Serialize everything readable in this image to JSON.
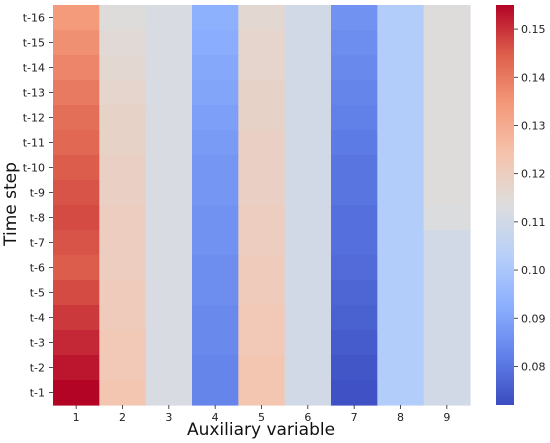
{
  "chart_data": {
    "type": "heatmap",
    "xlabel": "Auxiliary variable",
    "ylabel": "Time step",
    "x_categories": [
      "1",
      "2",
      "3",
      "4",
      "5",
      "6",
      "7",
      "8",
      "9"
    ],
    "y_categories": [
      "t-16",
      "t-15",
      "t-14",
      "t-13",
      "t-12",
      "t-11",
      "t-10",
      "t-9",
      "t-8",
      "t-7",
      "t-6",
      "t-5",
      "t-4",
      "t-3",
      "t-2",
      "t-1"
    ],
    "colormap": "coolwarm",
    "vmin": 0.072,
    "vmax": 0.155,
    "colorbar_ticks": [
      "0.08",
      "0.09",
      "0.10",
      "0.11",
      "0.12",
      "0.13",
      "0.14",
      "0.15"
    ],
    "values": [
      [
        0.134,
        0.114,
        0.112,
        0.093,
        0.116,
        0.11,
        0.086,
        0.102,
        0.114
      ],
      [
        0.136,
        0.115,
        0.112,
        0.092,
        0.117,
        0.11,
        0.085,
        0.102,
        0.114
      ],
      [
        0.138,
        0.116,
        0.112,
        0.091,
        0.117,
        0.11,
        0.084,
        0.102,
        0.114
      ],
      [
        0.14,
        0.117,
        0.112,
        0.09,
        0.118,
        0.11,
        0.083,
        0.102,
        0.114
      ],
      [
        0.142,
        0.118,
        0.112,
        0.089,
        0.118,
        0.11,
        0.082,
        0.102,
        0.114
      ],
      [
        0.143,
        0.118,
        0.112,
        0.088,
        0.119,
        0.11,
        0.081,
        0.102,
        0.114
      ],
      [
        0.145,
        0.119,
        0.112,
        0.087,
        0.119,
        0.11,
        0.08,
        0.102,
        0.114
      ],
      [
        0.146,
        0.119,
        0.112,
        0.087,
        0.119,
        0.11,
        0.08,
        0.102,
        0.114
      ],
      [
        0.147,
        0.12,
        0.112,
        0.086,
        0.12,
        0.11,
        0.079,
        0.102,
        0.113
      ],
      [
        0.146,
        0.12,
        0.112,
        0.086,
        0.12,
        0.11,
        0.079,
        0.102,
        0.11
      ],
      [
        0.145,
        0.12,
        0.112,
        0.085,
        0.121,
        0.11,
        0.078,
        0.102,
        0.11
      ],
      [
        0.147,
        0.121,
        0.112,
        0.085,
        0.121,
        0.11,
        0.077,
        0.102,
        0.11
      ],
      [
        0.149,
        0.121,
        0.112,
        0.084,
        0.122,
        0.11,
        0.076,
        0.102,
        0.11
      ],
      [
        0.151,
        0.122,
        0.112,
        0.084,
        0.122,
        0.11,
        0.075,
        0.102,
        0.11
      ],
      [
        0.153,
        0.122,
        0.112,
        0.083,
        0.123,
        0.11,
        0.074,
        0.102,
        0.11
      ],
      [
        0.155,
        0.123,
        0.112,
        0.083,
        0.123,
        0.11,
        0.073,
        0.102,
        0.11
      ]
    ]
  }
}
